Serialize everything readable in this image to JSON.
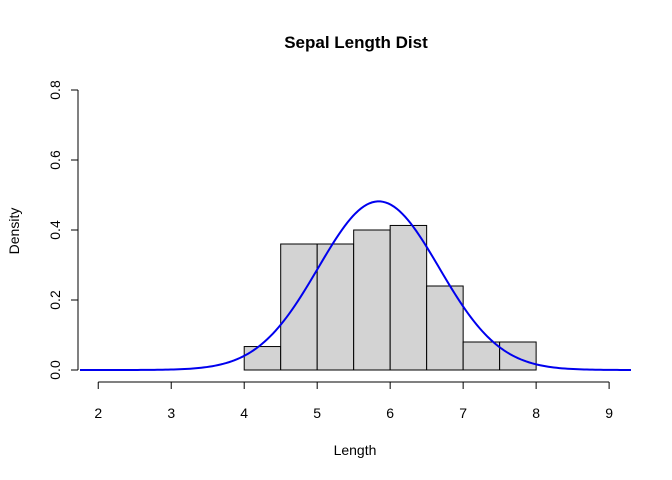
{
  "chart_data": {
    "type": "bar",
    "title": "Sepal Length Dist",
    "xlabel": "Length",
    "ylabel": "Density",
    "xlim": [
      1.75,
      9.3
    ],
    "ylim": [
      0,
      0.8
    ],
    "x_ticks": [
      2,
      3,
      4,
      5,
      6,
      7,
      8,
      9
    ],
    "y_ticks": [
      0.0,
      0.2,
      0.4,
      0.6,
      0.8
    ],
    "y_tick_labels": [
      "0.0",
      "0.2",
      "0.4",
      "0.6",
      "0.8"
    ],
    "grid": false,
    "bins": [
      {
        "start": 4.0,
        "end": 4.5,
        "density": 0.067
      },
      {
        "start": 4.5,
        "end": 5.0,
        "density": 0.36
      },
      {
        "start": 5.0,
        "end": 5.5,
        "density": 0.36
      },
      {
        "start": 5.5,
        "end": 6.0,
        "density": 0.4
      },
      {
        "start": 6.0,
        "end": 6.5,
        "density": 0.413
      },
      {
        "start": 6.5,
        "end": 7.0,
        "density": 0.24
      },
      {
        "start": 7.0,
        "end": 7.5,
        "density": 0.08
      },
      {
        "start": 7.5,
        "end": 8.0,
        "density": 0.08
      }
    ],
    "density_curve": {
      "type": "line",
      "color": "#0000ee",
      "mean": 5.843,
      "sd": 0.828,
      "x_range": [
        1.75,
        9.3
      ]
    },
    "colors": {
      "bar_fill": "#d3d3d3",
      "bar_stroke": "#000000",
      "curve": "#0000ee"
    }
  }
}
